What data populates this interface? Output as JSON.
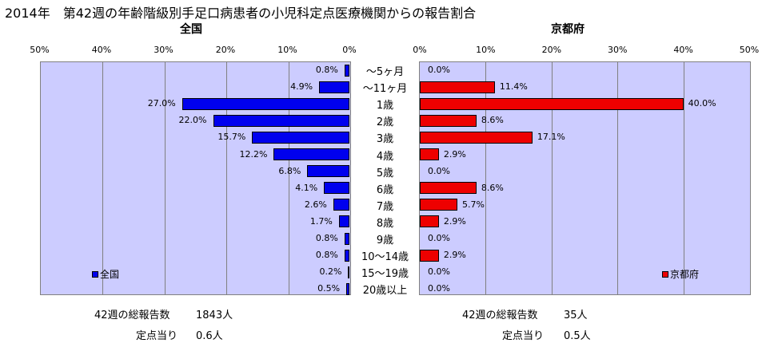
{
  "title": "2014年　第42週の年齢階級別手足口病患者の小児科定点医療機関からの報告割合",
  "chart_data": [
    {
      "type": "bar",
      "title": "全国",
      "orientation": "horizontal",
      "direction": "right-to-left",
      "categories": [
        "～5ヶ月",
        "～11ヶ月",
        "1歳",
        "2歳",
        "3歳",
        "4歳",
        "5歳",
        "6歳",
        "7歳",
        "8歳",
        "9歳",
        "10～14歳",
        "15～19歳",
        "20歳以上"
      ],
      "series": [
        {
          "name": "全国",
          "color": "#0000ee",
          "values": [
            0.8,
            4.9,
            27.0,
            22.0,
            15.7,
            12.2,
            6.8,
            4.1,
            2.6,
            1.7,
            0.8,
            0.8,
            0.2,
            0.5
          ],
          "labels": [
            "0.8%",
            "4.9%",
            "27.0%",
            "22.0%",
            "15.7%",
            "12.2%",
            "6.8%",
            "4.1%",
            "2.6%",
            "1.7%",
            "0.8%",
            "0.8%",
            "0.2%",
            "0.5%"
          ]
        }
      ],
      "xlim": [
        0,
        50
      ],
      "xticks": [
        "50%",
        "40%",
        "30%",
        "20%",
        "10%",
        "0%"
      ],
      "grid": true,
      "legend": "bottom-left"
    },
    {
      "type": "bar",
      "title": "京都府",
      "orientation": "horizontal",
      "direction": "left-to-right",
      "categories": [
        "～5ヶ月",
        "～11ヶ月",
        "1歳",
        "2歳",
        "3歳",
        "4歳",
        "5歳",
        "6歳",
        "7歳",
        "8歳",
        "9歳",
        "10～14歳",
        "15～19歳",
        "20歳以上"
      ],
      "series": [
        {
          "name": "京都府",
          "color": "#ee0000",
          "values": [
            0.0,
            11.4,
            40.0,
            8.6,
            17.1,
            2.9,
            0.0,
            8.6,
            5.7,
            2.9,
            0.0,
            2.9,
            0.0,
            0.0
          ],
          "labels": [
            "0.0%",
            "11.4%",
            "40.0%",
            "8.6%",
            "17.1%",
            "2.9%",
            "0.0%",
            "8.6%",
            "5.7%",
            "2.9%",
            "0.0%",
            "2.9%",
            "0.0%",
            "0.0%"
          ]
        }
      ],
      "xlim": [
        0,
        50
      ],
      "xticks": [
        "0%",
        "10%",
        "20%",
        "30%",
        "40%",
        "50%"
      ],
      "grid": true,
      "legend": "bottom-right"
    }
  ],
  "footer": {
    "left": {
      "total_label": "42週の総報告数",
      "total_value": "1843人",
      "per_label": "定点当り",
      "per_value": "0.6人"
    },
    "right": {
      "total_label": "42週の総報告数",
      "total_value": "35人",
      "per_label": "定点当り",
      "per_value": "0.5人"
    }
  }
}
